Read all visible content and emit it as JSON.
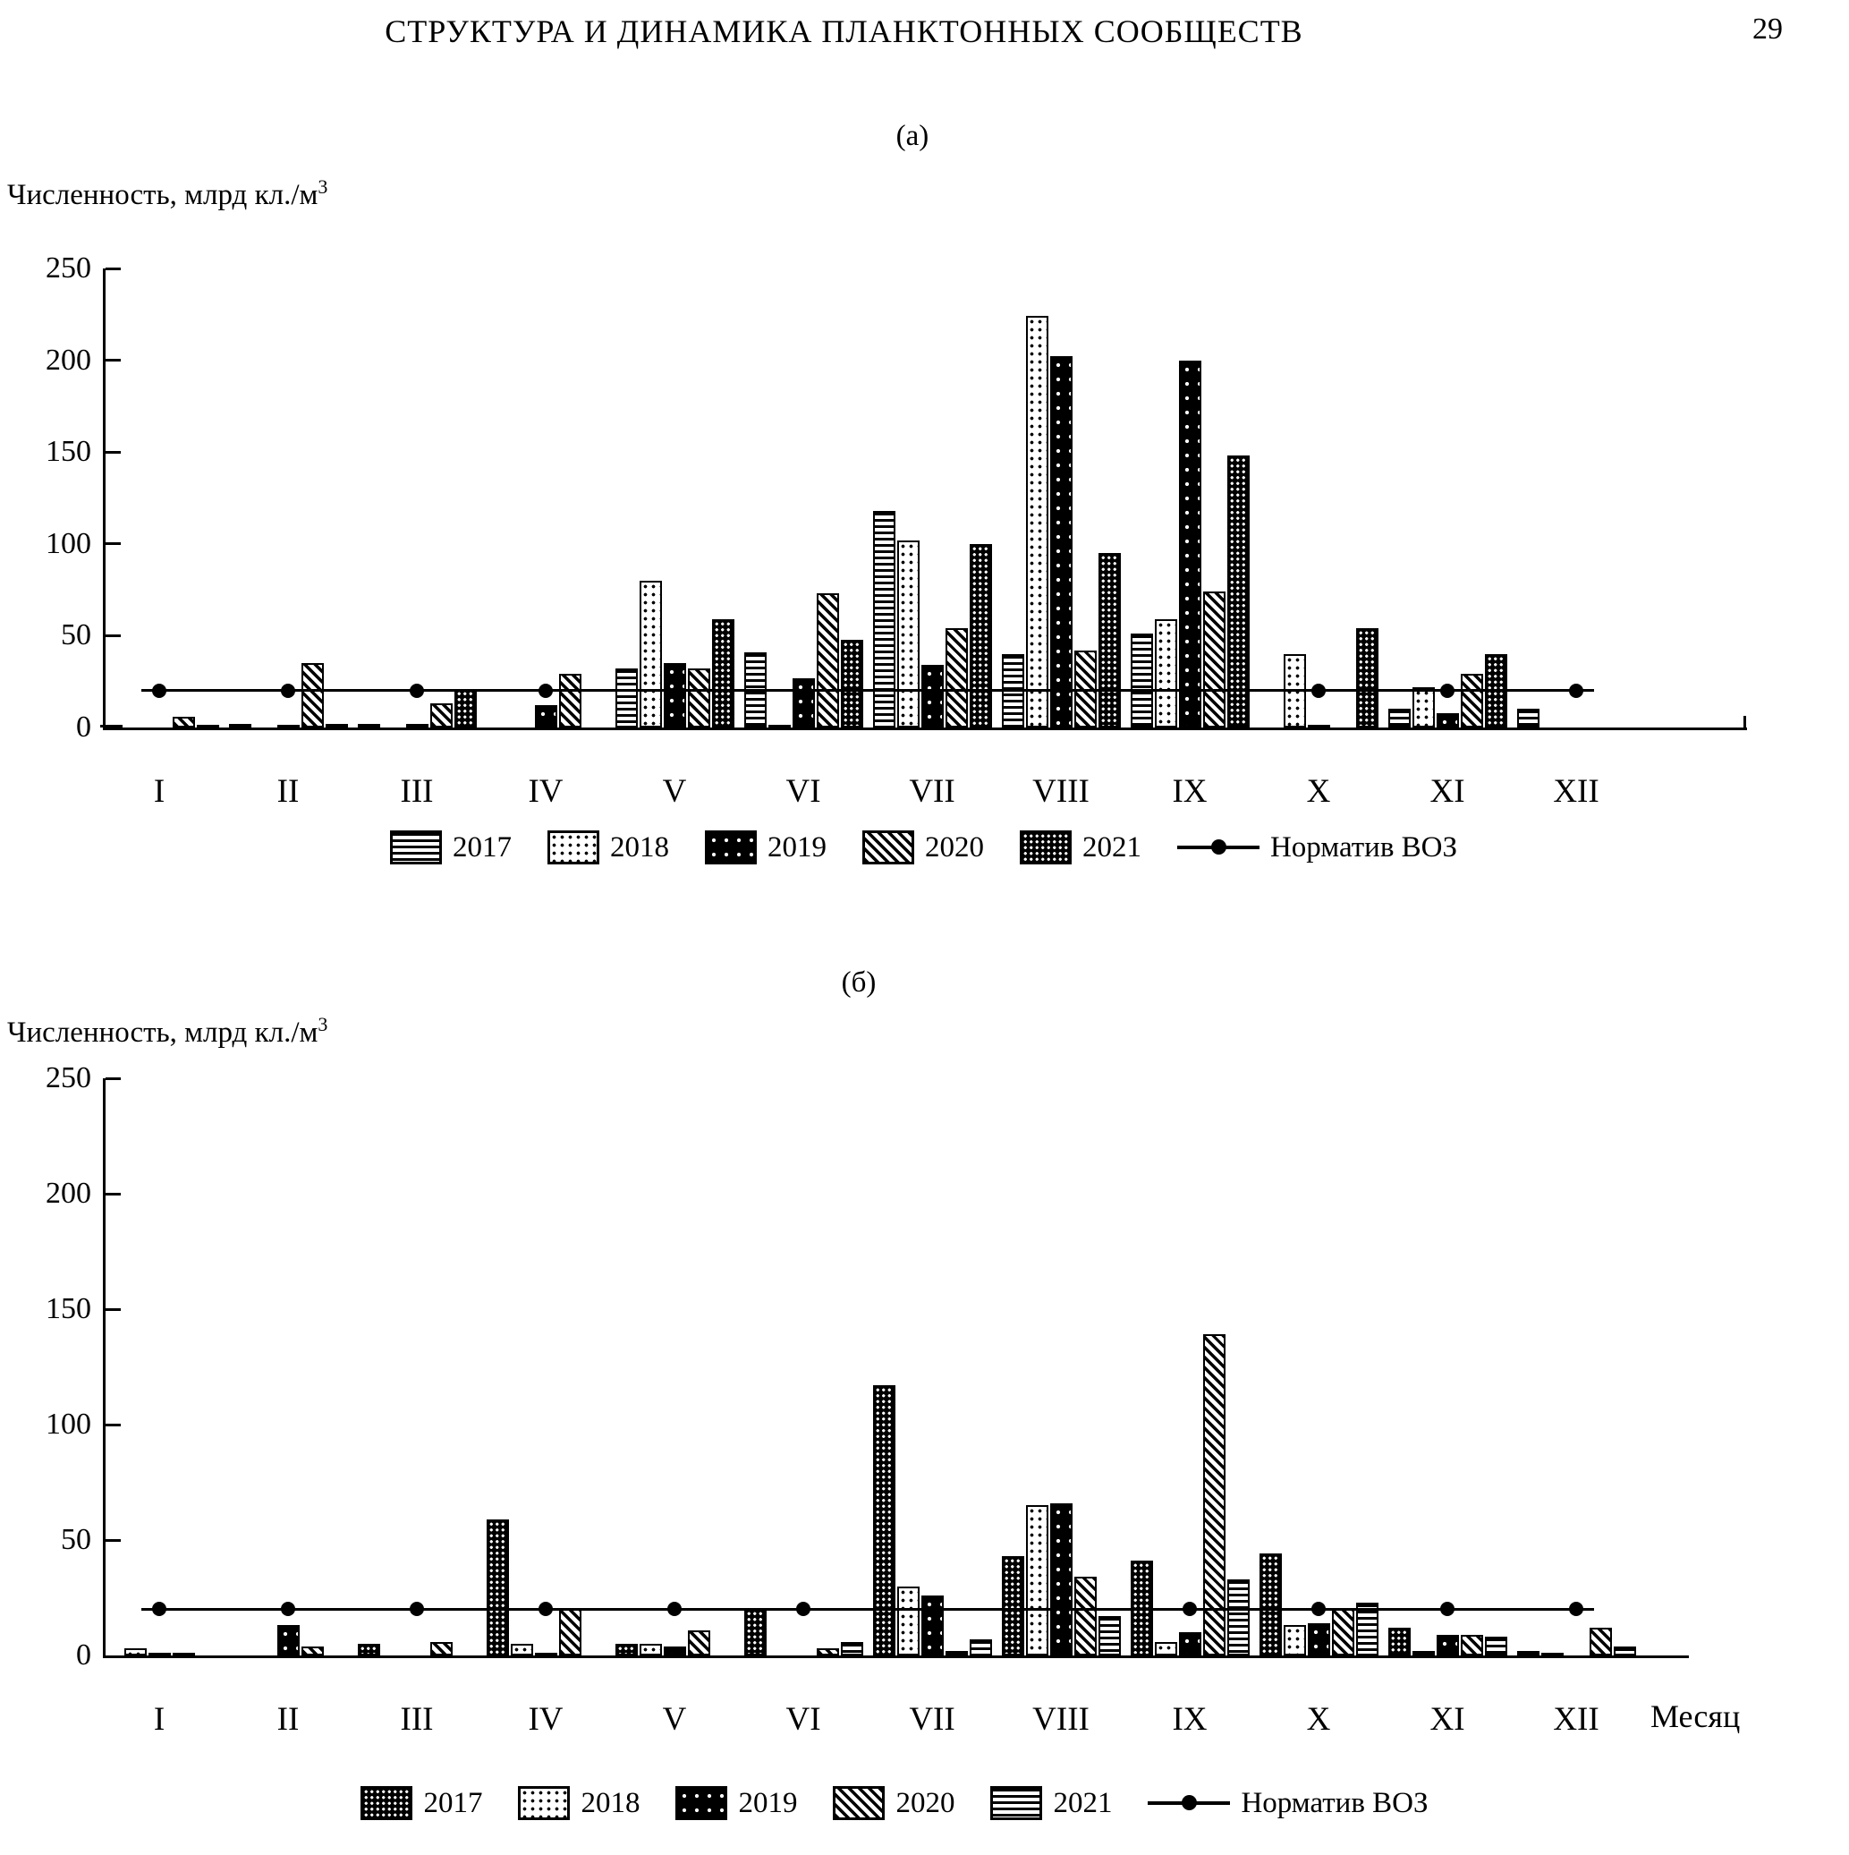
{
  "page": {
    "title": "СТРУКТУРА И ДИНАМИКА ПЛАНКТОННЫХ СООБЩЕСТВ",
    "page_number": "29"
  },
  "panel_a_label": "(а)",
  "panel_b_label": "(б)",
  "y_axis_label": "Численность, млрд кл./м",
  "y_axis_sup": "3",
  "x_axis_label_b": "Месяц",
  "chart_data": [
    {
      "type": "bar",
      "panel": "(а)",
      "ylabel": "Численность, млрд кл./м3",
      "xlabel": "",
      "ylim": [
        0,
        250
      ],
      "yticks": [
        0,
        50,
        100,
        150,
        200,
        250
      ],
      "grid": false,
      "legend_position": "bottom",
      "categories": [
        "I",
        "II",
        "III",
        "IV",
        "V",
        "VI",
        "VII",
        "VIII",
        "IX",
        "X",
        "XI",
        "XII"
      ],
      "series": [
        {
          "name": "2017",
          "pattern": "hstripes",
          "values": [
            1,
            2,
            2,
            0,
            32,
            41,
            118,
            40,
            51,
            0,
            10,
            10
          ]
        },
        {
          "name": "2018",
          "pattern": "dots",
          "values": [
            0,
            0,
            0,
            0,
            80,
            1,
            102,
            224,
            59,
            40,
            22,
            0
          ]
        },
        {
          "name": "2019",
          "pattern": "black-dots",
          "values": [
            0,
            1,
            2,
            12,
            35,
            27,
            34,
            202,
            200,
            1,
            8,
            0
          ]
        },
        {
          "name": "2020",
          "pattern": "diagonal",
          "values": [
            6,
            35,
            13,
            29,
            32,
            73,
            54,
            42,
            74,
            0,
            29,
            0
          ]
        },
        {
          "name": "2021",
          "pattern": "checker",
          "values": [
            1,
            2,
            21,
            0,
            59,
            48,
            100,
            95,
            148,
            54,
            40,
            0
          ]
        }
      ],
      "reference_line": {
        "name": "Норматив ВОЗ",
        "value": 20
      }
    },
    {
      "type": "bar",
      "panel": "(б)",
      "ylabel": "Численность, млрд кл./м3",
      "xlabel": "Месяц",
      "ylim": [
        0,
        250
      ],
      "yticks": [
        0,
        50,
        100,
        150,
        200,
        250
      ],
      "grid": false,
      "legend_position": "bottom",
      "categories": [
        "I",
        "II",
        "III",
        "IV",
        "V",
        "VI",
        "VII",
        "VIII",
        "IX",
        "X",
        "XI",
        "XII"
      ],
      "series": [
        {
          "name": "2017",
          "pattern": "checker",
          "values": [
            0,
            0,
            5,
            59,
            5,
            20,
            117,
            43,
            41,
            44,
            12,
            2
          ]
        },
        {
          "name": "2018",
          "pattern": "dots",
          "values": [
            3,
            0,
            0,
            5,
            5,
            0,
            30,
            65,
            6,
            13,
            2,
            1
          ]
        },
        {
          "name": "2019",
          "pattern": "black-dots",
          "values": [
            1,
            13,
            0,
            1,
            4,
            0,
            26,
            66,
            10,
            14,
            9,
            0
          ]
        },
        {
          "name": "2020",
          "pattern": "diagonal",
          "values": [
            1,
            4,
            6,
            20,
            11,
            3,
            2,
            34,
            139,
            20,
            9,
            12
          ]
        },
        {
          "name": "2021",
          "pattern": "hstripes",
          "values": [
            0,
            0,
            0,
            0,
            0,
            6,
            7,
            17,
            33,
            23,
            8,
            4
          ]
        }
      ],
      "reference_line": {
        "name": "Норматив ВОЗ",
        "value": 20
      }
    }
  ]
}
